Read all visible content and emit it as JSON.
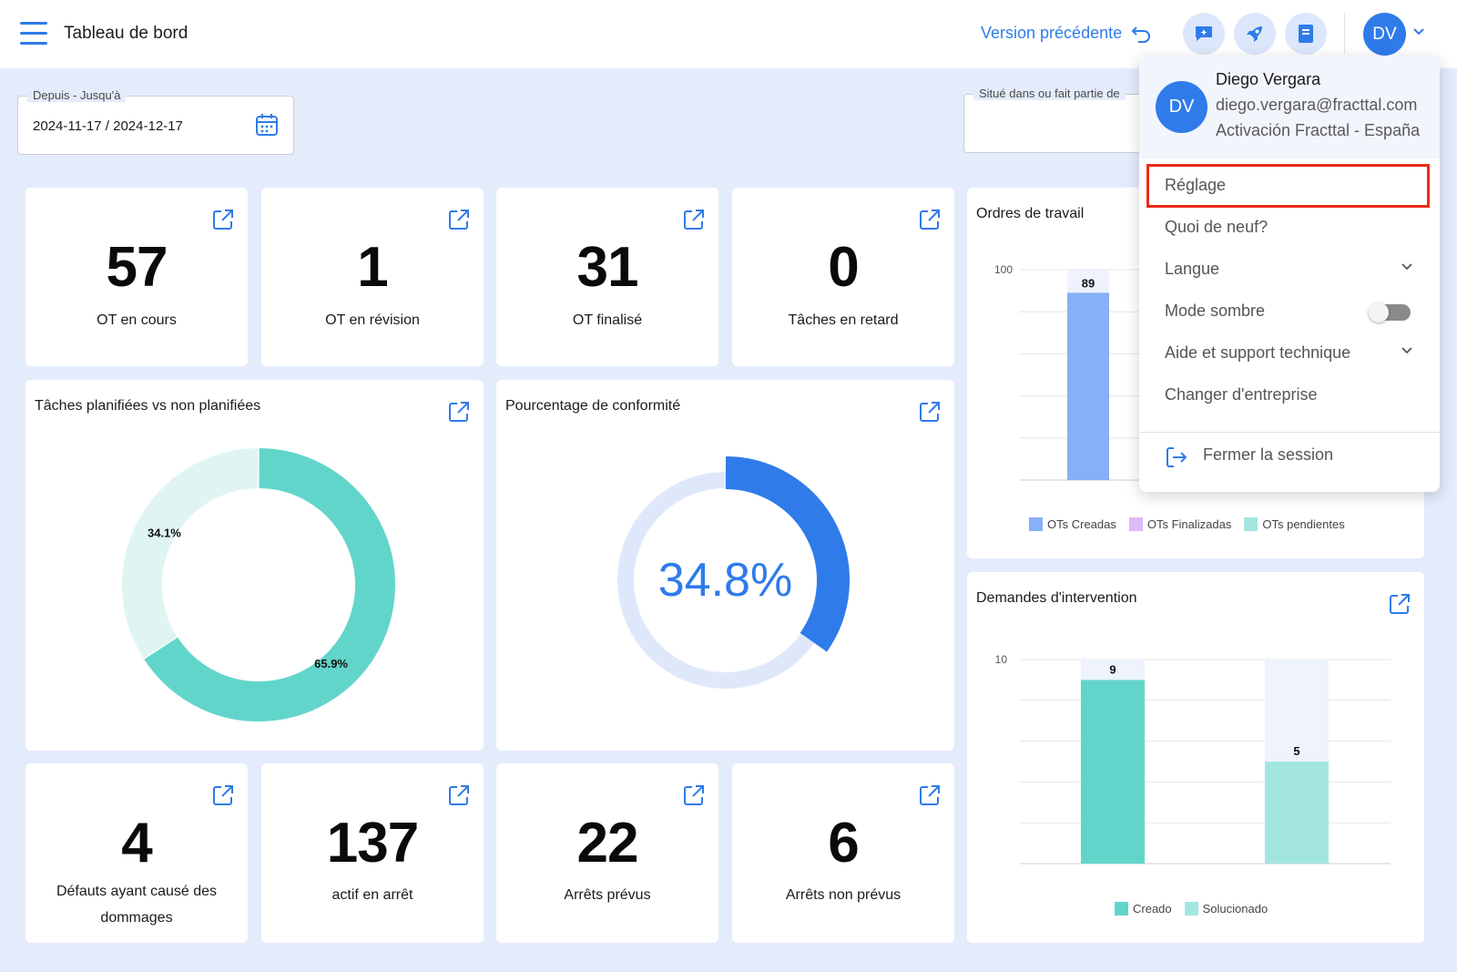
{
  "header": {
    "title": "Tableau de bord",
    "version_link": "Version précédente",
    "avatar_initials": "DV"
  },
  "filters": {
    "date_range": {
      "label": "Depuis - Jusqu'à",
      "value": "2024-11-17 / 2024-12-17"
    },
    "location": {
      "label": "Situé dans ou fait partie de",
      "value": ""
    }
  },
  "kpis_top": [
    {
      "value": "57",
      "label": "OT en cours"
    },
    {
      "value": "1",
      "label": "OT en révision"
    },
    {
      "value": "31",
      "label": "OT finalisé"
    },
    {
      "value": "0",
      "label": "Tâches en retard"
    }
  ],
  "kpis_bottom": [
    {
      "value": "4",
      "label": "Défauts ayant causé des dommages"
    },
    {
      "value": "137",
      "label": "actif en arrêt"
    },
    {
      "value": "22",
      "label": "Arrêts prévus"
    },
    {
      "value": "6",
      "label": "Arrêts non prévus"
    }
  ],
  "cards": {
    "tasks_title": "Tâches planifiées vs non planifiées",
    "compliance_title": "Pourcentage de conformité",
    "compliance_value": "34.8%",
    "work_orders_title": "Ordres de travail",
    "requests_title": "Demandes d'intervention"
  },
  "colors": {
    "accent": "#2f7bea",
    "teal": "#62d5cb",
    "teal_light": "#e0f5f3",
    "teal_pale": "#a3e6e0",
    "blue_bar": "#86b0f7",
    "purple": "#dcbcfa",
    "highlight": "#ee2a16"
  },
  "chart_data": [
    {
      "type": "pie",
      "title": "Tâches planifiées vs non planifiées",
      "values": [
        65.9,
        34.1
      ],
      "labels_shown": [
        "65.9%",
        "34.1%"
      ]
    },
    {
      "type": "pie",
      "title": "Pourcentage de conformité",
      "values": [
        34.8
      ],
      "center_label": "34.8%"
    },
    {
      "type": "bar",
      "title": "Ordres de travail",
      "ylim": [
        0,
        100
      ],
      "y_tick": "100",
      "series": [
        {
          "name": "OTs Creadas",
          "values": [
            89
          ]
        },
        {
          "name": "OTs Finalizadas",
          "values": []
        },
        {
          "name": "OTs pendientes",
          "values": []
        }
      ],
      "data_labels": [
        "89"
      ]
    },
    {
      "type": "bar",
      "title": "Demandes d'intervention",
      "ylim": [
        0,
        10
      ],
      "y_tick": "10",
      "series": [
        {
          "name": "Creado",
          "values": [
            9
          ]
        },
        {
          "name": "Solucionado",
          "values": [
            5
          ]
        }
      ],
      "data_labels": [
        "9",
        "5"
      ]
    }
  ],
  "user_menu": {
    "name": "Diego Vergara",
    "email": "diego.vergara@fracttal.com",
    "company": "Activación Fracttal - España",
    "items": {
      "settings": "Réglage",
      "whats_new": "Quoi de neuf?",
      "language": "Langue",
      "dark_mode": "Mode sombre",
      "help": "Aide et support technique",
      "change_company": "Changer d'entreprise",
      "logout": "Fermer la session"
    }
  }
}
